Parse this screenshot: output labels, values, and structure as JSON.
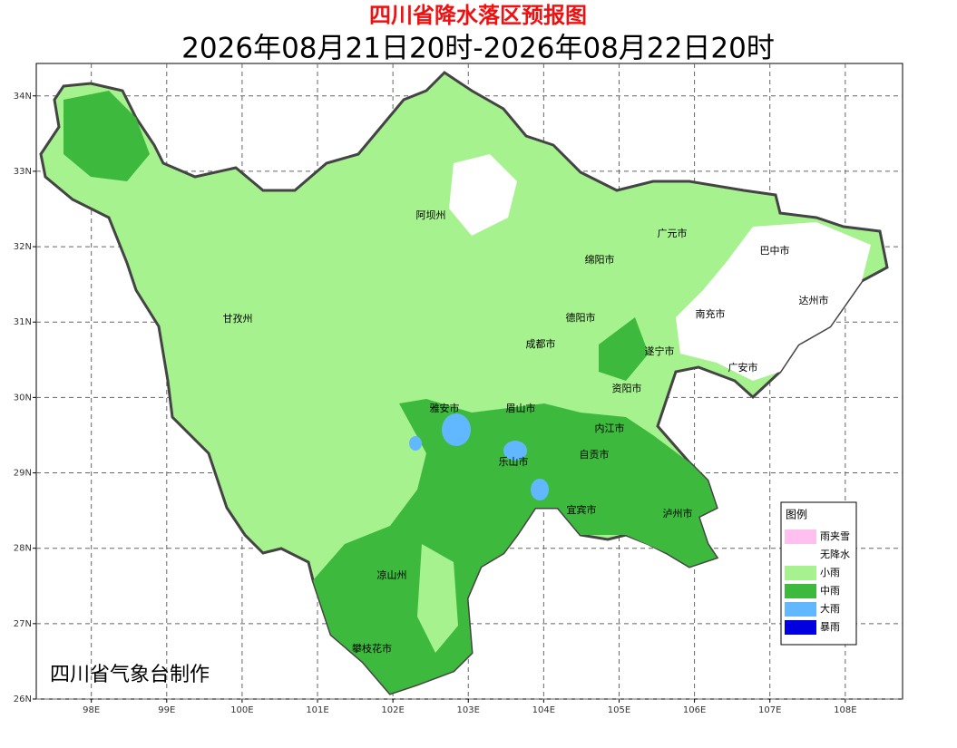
{
  "header": {
    "title": "四川省降水落区预报图",
    "subtitle": "2026年08月21日20时-2026年08月22日20时"
  },
  "map": {
    "lon_range": [
      97.27,
      108.76
    ],
    "lat_range": [
      26,
      34.43
    ],
    "lon_ticks": [
      {
        "value": 98,
        "label": "98E"
      },
      {
        "value": 99,
        "label": "99E"
      },
      {
        "value": 100,
        "label": "100E"
      },
      {
        "value": 101,
        "label": "101E"
      },
      {
        "value": 102,
        "label": "102E"
      },
      {
        "value": 103,
        "label": "103E"
      },
      {
        "value": 104,
        "label": "104E"
      },
      {
        "value": 105,
        "label": "105E"
      },
      {
        "value": 106,
        "label": "106E"
      },
      {
        "value": 107,
        "label": "107E"
      },
      {
        "value": 108,
        "label": "108E"
      }
    ],
    "lat_ticks": [
      {
        "value": 26,
        "label": "26N"
      },
      {
        "value": 27,
        "label": "27N"
      },
      {
        "value": 28,
        "label": "28N"
      },
      {
        "value": 29,
        "label": "29N"
      },
      {
        "value": 30,
        "label": "30N"
      },
      {
        "value": 31,
        "label": "31N"
      },
      {
        "value": 32,
        "label": "32N"
      },
      {
        "value": 33,
        "label": "33N"
      },
      {
        "value": 34,
        "label": "34N"
      }
    ],
    "cities": [
      "阿坝州",
      "广元市",
      "巴中市",
      "绵阳市",
      "达州市",
      "甘孜州",
      "德阳市",
      "南充市",
      "成都市",
      "遂宁市",
      "广安市",
      "资阳市",
      "雅安市",
      "眉山市",
      "内江市",
      "乐山市",
      "自贡市",
      "宜宾市",
      "泸州市",
      "凉山州",
      "攀枝花市"
    ],
    "credit": "四川省气象台制作"
  },
  "legend": {
    "title": "图例",
    "items": [
      {
        "label": "雨夹雪",
        "color": "#ffc0f0"
      },
      {
        "label": "无降水",
        "color": "#ffffff"
      },
      {
        "label": "小雨",
        "color": "#a6f28f"
      },
      {
        "label": "中雨",
        "color": "#3dba3d"
      },
      {
        "label": "大雨",
        "color": "#61b8ff"
      },
      {
        "label": "暴雨",
        "color": "#0000e1"
      }
    ]
  }
}
